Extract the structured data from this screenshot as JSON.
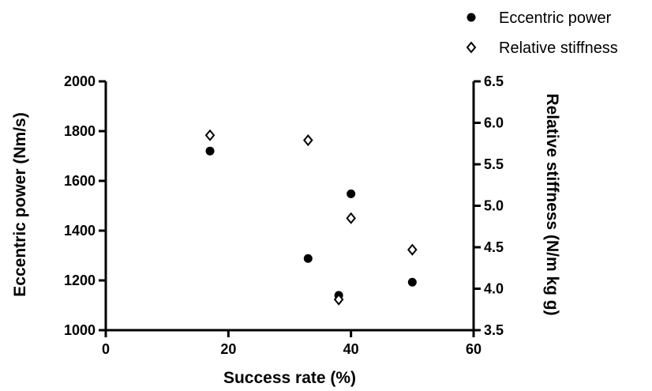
{
  "chart_data": {
    "type": "scatter",
    "xlabel": "Success rate (%)",
    "ylabel": "Eccentric power (Nm/s)",
    "y2label": "Relative stiffness (N/m kg g)",
    "xlim": [
      0,
      60
    ],
    "ylim": [
      1000,
      2000
    ],
    "y2lim": [
      3.5,
      6.5
    ],
    "x_ticks": [
      0,
      20,
      40,
      60
    ],
    "y_ticks": [
      1000,
      1200,
      1400,
      1600,
      1800,
      2000
    ],
    "y2_ticks": [
      "3.5",
      "4.0",
      "4.5",
      "5.0",
      "5.5",
      "6.0",
      "6.5"
    ],
    "grid": false,
    "legend_position": "top-right",
    "series": [
      {
        "name": "Eccentric power",
        "axis": "left",
        "marker": "filled-circle",
        "color": "#000000",
        "x": [
          17,
          33,
          38,
          40,
          50
        ],
        "y": [
          1720,
          1288,
          1140,
          1548,
          1193
        ]
      },
      {
        "name": "Relative stiffness",
        "axis": "right",
        "marker": "open-diamond",
        "color": "#000000",
        "x": [
          17,
          33,
          38,
          40,
          50
        ],
        "y": [
          5.85,
          5.79,
          3.87,
          4.85,
          4.47
        ]
      }
    ]
  }
}
